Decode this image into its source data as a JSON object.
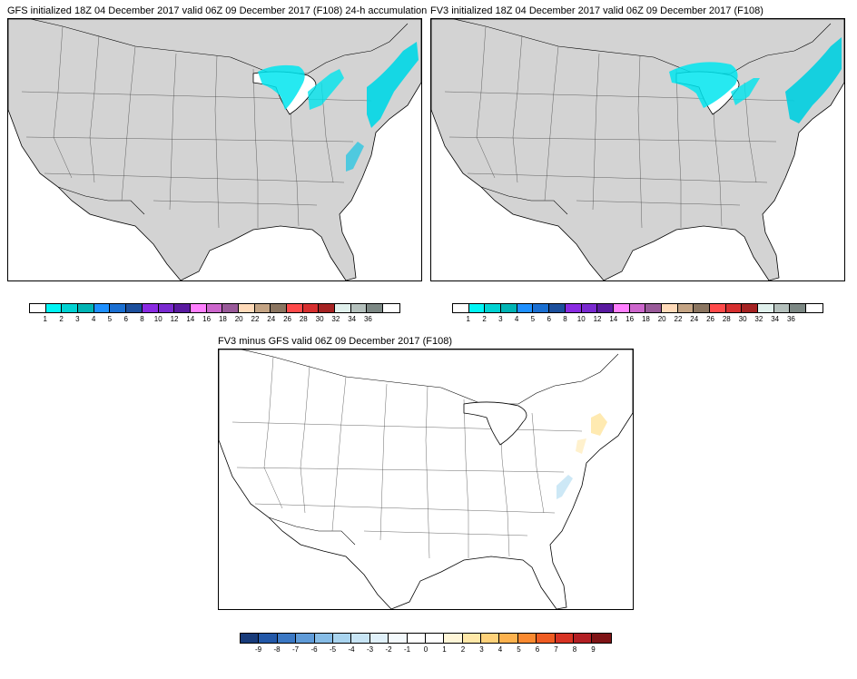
{
  "panels": [
    {
      "title": "GFS initialized 18Z 04 December 2017 valid 06Z 09 December 2017 (F108) 24-h accumulation",
      "land_color": "#d3d3d3",
      "ocean_color": "#ffffff",
      "snow_regions": [
        "Great Lakes lake-effect",
        "Northeast coast",
        "Interior Southeast (NC/SC)"
      ]
    },
    {
      "title": "FV3 initialized 18Z 04 December 2017 valid 06Z 09 December 2017 (F108)",
      "land_color": "#d3d3d3",
      "ocean_color": "#ffffff",
      "snow_regions": [
        "Great Lakes lake-effect",
        "Northeast coast"
      ]
    },
    {
      "title": "FV3 minus GFS valid 06Z 09 December 2017 (F108)",
      "land_color": "#ffffff",
      "ocean_color": "#ffffff",
      "diff_regions": [
        "New England (positive)",
        "Mid-Atlantic coast (positive)",
        "Carolinas (negative)"
      ]
    }
  ],
  "colorbar_accum": {
    "labels": [
      "1",
      "2",
      "3",
      "4",
      "5",
      "6",
      "8",
      "10",
      "12",
      "14",
      "16",
      "18",
      "20",
      "22",
      "24",
      "26",
      "28",
      "30",
      "32",
      "34",
      "36"
    ],
    "colors": [
      "#ffffff",
      "#00f5f5",
      "#00d2d2",
      "#00b4b4",
      "#1e90ff",
      "#1a6fd1",
      "#1c4f9c",
      "#8a2be2",
      "#7a2ad0",
      "#5a1aa0",
      "#ff7fff",
      "#cc66cc",
      "#995a99",
      "#ffdab9",
      "#c4a484",
      "#8b7560",
      "#ff4a4a",
      "#d62f2f",
      "#a52323",
      "#e0f0ec",
      "#b4c0bc",
      "#7c8884",
      "#ffffff"
    ]
  },
  "colorbar_diff": {
    "labels": [
      "-9",
      "-8",
      "-7",
      "-6",
      "-5",
      "-4",
      "-3",
      "-2",
      "-1",
      "0",
      "1",
      "2",
      "3",
      "4",
      "5",
      "6",
      "7",
      "8",
      "9"
    ],
    "colors": [
      "#183b7a",
      "#2358a8",
      "#3b78c4",
      "#5f9bd8",
      "#86bce6",
      "#a9d4ef",
      "#c8e5f5",
      "#e1f1fa",
      "#f4fafd",
      "#ffffff",
      "#ffffff",
      "#fff6d8",
      "#ffe8a8",
      "#ffd27a",
      "#fdb24e",
      "#fb8a30",
      "#ef5c22",
      "#d73324",
      "#b21f24",
      "#7f1416"
    ]
  }
}
